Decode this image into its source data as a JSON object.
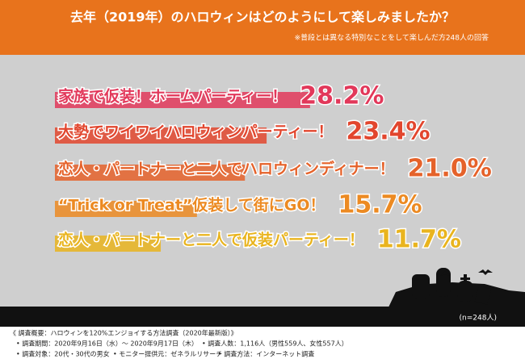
{
  "chart_data": {
    "type": "bar",
    "title": "去年（2019年）のハロウィンはどのようにして楽しみましたか？",
    "subtitle": "※普段とは異なる特別なことをして楽しんだ方248人の回答",
    "categories": [
      "家族で仮装！ホームパーティー！",
      "大勢でワイワイハロウィンパーティー！",
      "恋人・パートナーと二人でハロウィンディナー！",
      "“Trick or Treat”仮装して街にGO！",
      "恋人・パートナーと二人で仮装パーティー！"
    ],
    "values": [
      28.2,
      23.4,
      21.0,
      15.7,
      11.7
    ],
    "value_labels": [
      "28.2%",
      "23.4%",
      "21.0%",
      "15.7%",
      "11.7%"
    ],
    "colors": [
      "#e2385a",
      "#e2462e",
      "#e5622a",
      "#ec8a22",
      "#e9b41e"
    ],
    "note": "(n=248人)"
  },
  "footer": [
    "《 調査概要：ハロウィンを120%エンジョイする方法調査（2020年最新版）》",
    "• 調査期間：2020年9月16日（水）〜 2020年9月17日（木）",
    "• 調査人数：1,116人（男性559人、女性557人）",
    "• 調査対象：20代・30代の男女",
    "• モニター提供元：ゼネラルリサーチ",
    "• 調査方法：インターネット調査"
  ]
}
